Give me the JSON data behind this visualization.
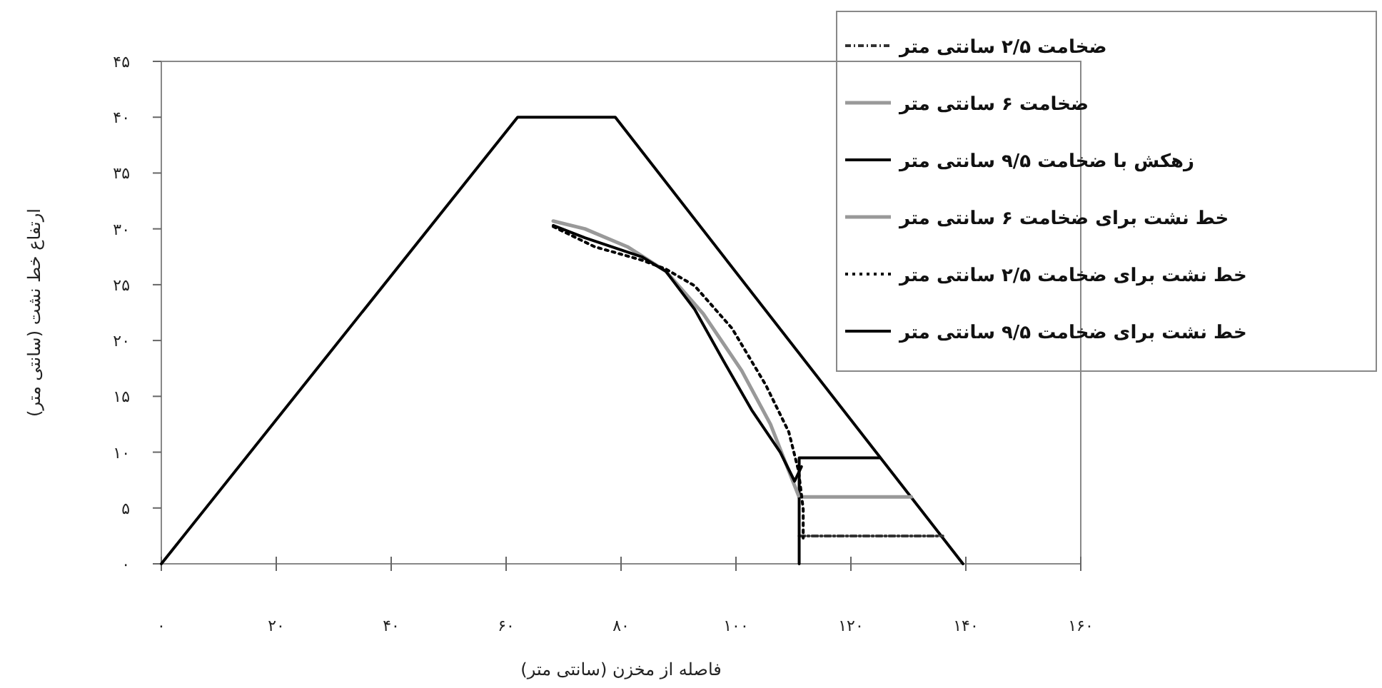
{
  "chart_data": {
    "type": "line",
    "xlabel": "فاصله از مخزن (سانتی متر)",
    "ylabel": "ارتفاع خط نشت (سانتی متر)",
    "xlim": [
      0,
      160
    ],
    "ylim": [
      0,
      45
    ],
    "xticks": [
      {
        "value": 0,
        "label": "۰"
      },
      {
        "value": 20,
        "label": "۲۰"
      },
      {
        "value": 40,
        "label": "۴۰"
      },
      {
        "value": 60,
        "label": "۶۰"
      },
      {
        "value": 80,
        "label": "۸۰"
      },
      {
        "value": 100,
        "label": "۱۰۰"
      },
      {
        "value": 120,
        "label": "۱۲۰"
      },
      {
        "value": 140,
        "label": "۱۴۰"
      },
      {
        "value": 160,
        "label": "۱۶۰"
      }
    ],
    "yticks": [
      {
        "value": 0,
        "label": "۰"
      },
      {
        "value": 5,
        "label": "۵"
      },
      {
        "value": 10,
        "label": "۱۰"
      },
      {
        "value": 15,
        "label": "۱۵"
      },
      {
        "value": 20,
        "label": "۲۰"
      },
      {
        "value": 25,
        "label": "۲۵"
      },
      {
        "value": 30,
        "label": "۳۰"
      },
      {
        "value": 35,
        "label": "۳۵"
      },
      {
        "value": 40,
        "label": "۴۰"
      },
      {
        "value": 45,
        "label": "۴۵"
      }
    ],
    "grid": false,
    "legend": "top right",
    "marker": "none",
    "series": [
      {
        "color": "#000000",
        "x": [
          0,
          62,
          79,
          139.5
        ],
        "values": [
          0,
          40,
          40,
          0
        ]
      },
      {
        "name": "ضخامت ۲/۵ سانتی متر",
        "color": "#333333",
        "line_style": "dashed",
        "x": [
          111,
          136
        ],
        "values": [
          2.5,
          2.5
        ]
      },
      {
        "name": "ضخامت ۶ سانتی متر",
        "color": "#999999",
        "x": [
          111,
          130.5
        ],
        "values": [
          6,
          6
        ]
      },
      {
        "name": "زهکش با ضخامت ۹/۵ سانتی متر",
        "color": "#000000",
        "x": [
          111,
          111,
          125
        ],
        "values": [
          0,
          9.5,
          9.5
        ]
      },
      {
        "name": "خط نشت برای ضخامت ۶ سانتی متر",
        "color": "#999999",
        "x": [
          68.2,
          73.7,
          81.1,
          87.8,
          94.3,
          101,
          106,
          109.2,
          110.9
        ],
        "values": [
          30.7,
          30,
          28.4,
          26.2,
          22.4,
          17.3,
          12.5,
          8.3,
          6.1
        ]
      },
      {
        "name": "خط نشت برای ضخامت ۲/۵ سانتی متر",
        "color": "#000000",
        "line_style": "dotted",
        "x": [
          68.2,
          75.4,
          83.6,
          87.8,
          92.8,
          99.3,
          105.2,
          109.2,
          110.9,
          111.7,
          111.7
        ],
        "values": [
          30.2,
          28.4,
          27.2,
          26.4,
          24.9,
          21.1,
          16,
          11.8,
          8.3,
          4.9,
          2.3
        ]
      },
      {
        "name": "خط نشت برای ضخامت ۹/۵ سانتی متر",
        "color": "#000000",
        "x": [
          68.2,
          73.7,
          83.6,
          87.8,
          92.8,
          97.8,
          102.7,
          107.7,
          110.2,
          111.4
        ],
        "values": [
          30.3,
          29.2,
          27.5,
          26.2,
          22.8,
          18.2,
          13.8,
          10,
          7.4,
          8.7
        ]
      }
    ]
  }
}
